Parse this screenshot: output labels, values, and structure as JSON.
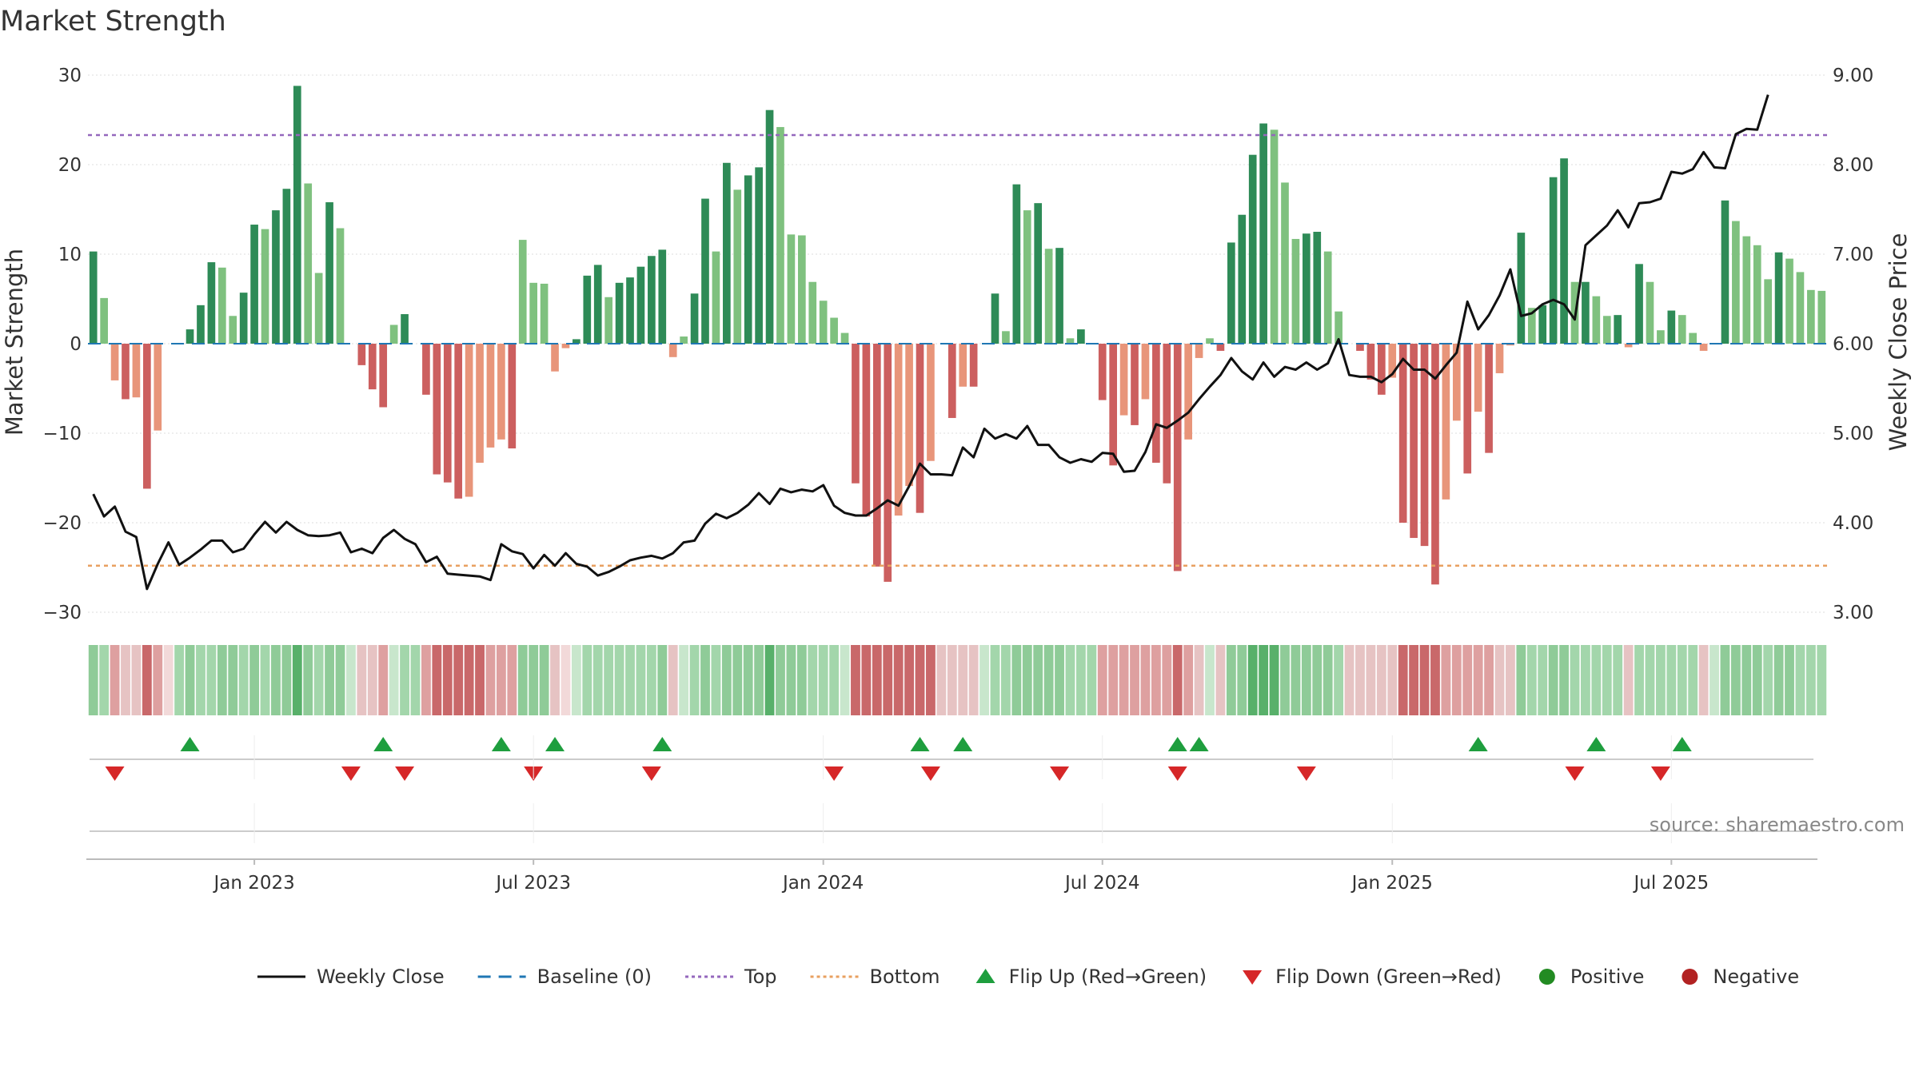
{
  "chart_data": {
    "type": "bar",
    "title": "Market Strength",
    "ylabel": "Market Strength",
    "y2label": "Weekly Close Price",
    "ylim": [
      -30,
      30
    ],
    "y2lim": [
      3.0,
      9.0
    ],
    "yticks": [
      "30",
      "20",
      "10",
      "0",
      "−10",
      "−20",
      "−30"
    ],
    "y2ticks": [
      "9.00",
      "8.00",
      "7.00",
      "6.00",
      "5.00",
      "4.00",
      "3.00"
    ],
    "xticks": [
      "Jan 2023",
      "Jul 2023",
      "Jan 2024",
      "Jul 2024",
      "Jan 2025",
      "Jul 2025"
    ],
    "xtick_index": [
      15,
      41,
      68,
      94,
      121,
      147
    ],
    "top_level": 23.3,
    "bottom_level": -24.8,
    "baseline": 0,
    "strength": [
      10.3,
      5.1,
      -4.1,
      -6.2,
      -6.0,
      -16.2,
      -9.7,
      0.0,
      0.0,
      1.6,
      4.3,
      9.1,
      8.5,
      3.1,
      5.7,
      13.3,
      12.8,
      14.9,
      17.3,
      28.8,
      17.9,
      7.9,
      15.8,
      12.9,
      0.0,
      -2.4,
      -5.1,
      -7.1,
      2.1,
      3.3,
      0.0,
      -5.7,
      -14.6,
      -15.5,
      -17.3,
      -17.1,
      -13.3,
      -11.6,
      -10.7,
      -11.7,
      11.6,
      6.8,
      6.7,
      -3.1,
      -0.5,
      0.5,
      7.6,
      8.8,
      5.2,
      6.8,
      7.4,
      8.6,
      9.8,
      10.5,
      -1.5,
      0.8,
      5.6,
      16.2,
      10.3,
      20.2,
      17.2,
      18.8,
      19.7,
      26.1,
      24.2,
      12.2,
      12.1,
      6.9,
      4.8,
      2.9,
      1.2,
      -15.6,
      -19.3,
      -24.9,
      -26.6,
      -19.2,
      -15.9,
      -18.9,
      -13.1,
      0.0,
      -8.3,
      -4.8,
      -4.8,
      0.0,
      5.6,
      1.4,
      17.8,
      14.9,
      15.7,
      10.6,
      10.7,
      0.6,
      1.6,
      0.0,
      -6.3,
      -13.6,
      -8.0,
      -9.1,
      -6.2,
      -13.3,
      -15.6,
      -25.4,
      -10.7,
      -1.6,
      0.6,
      -0.8,
      11.3,
      14.4,
      21.1,
      24.6,
      23.9,
      18.0,
      11.7,
      12.3,
      12.5,
      10.3,
      3.6,
      0.0,
      -0.8,
      -4.0,
      -5.7,
      -3.8,
      -20.0,
      -21.7,
      -22.6,
      -26.9,
      -17.4,
      -8.6,
      -14.5,
      -7.6,
      -12.2,
      -3.3,
      -0.2,
      12.4,
      4.0,
      4.3,
      18.6,
      20.7,
      6.9,
      6.9,
      5.3,
      3.1,
      3.2,
      -0.4,
      8.9,
      6.9,
      1.5,
      3.7,
      3.2,
      1.2,
      -0.8,
      0.0,
      16.0,
      13.7,
      12.0,
      11.0,
      7.2,
      10.2,
      9.5,
      8.0,
      6.0,
      5.9
    ],
    "weekly_close": [
      4.32,
      4.07,
      4.18,
      3.9,
      3.84,
      3.26,
      3.54,
      3.78,
      3.53,
      3.61,
      3.7,
      3.8,
      3.8,
      3.67,
      3.71,
      3.87,
      4.01,
      3.89,
      4.01,
      3.92,
      3.86,
      3.85,
      3.86,
      3.89,
      3.67,
      3.71,
      3.66,
      3.83,
      3.92,
      3.82,
      3.76,
      3.56,
      3.62,
      3.43,
      3.42,
      3.41,
      3.4,
      3.36,
      3.76,
      3.68,
      3.65,
      3.49,
      3.64,
      3.52,
      3.66,
      3.54,
      3.51,
      3.41,
      3.45,
      3.51,
      3.58,
      3.61,
      3.63,
      3.6,
      3.66,
      3.78,
      3.8,
      3.99,
      4.1,
      4.05,
      4.11,
      4.2,
      4.33,
      4.21,
      4.38,
      4.34,
      4.37,
      4.35,
      4.42,
      4.19,
      4.11,
      4.08,
      4.08,
      4.16,
      4.25,
      4.19,
      4.41,
      4.66,
      4.54,
      4.54,
      4.53,
      4.84,
      4.73,
      5.05,
      4.94,
      4.99,
      4.94,
      5.08,
      4.87,
      4.87,
      4.73,
      4.67,
      4.71,
      4.68,
      4.78,
      4.77,
      4.57,
      4.58,
      4.79,
      5.1,
      5.06,
      5.14,
      5.23,
      5.38,
      5.52,
      5.65,
      5.84,
      5.69,
      5.6,
      5.79,
      5.63,
      5.74,
      5.71,
      5.79,
      5.71,
      5.78,
      6.05,
      5.65,
      5.63,
      5.63,
      5.57,
      5.66,
      5.83,
      5.71,
      5.71,
      5.61,
      5.76,
      5.9,
      6.47,
      6.16,
      6.32,
      6.54,
      6.83,
      6.31,
      6.34,
      6.44,
      6.49,
      6.44,
      6.27,
      7.1,
      7.21,
      7.32,
      7.49,
      7.3,
      7.57,
      7.58,
      7.62,
      7.92,
      7.9,
      7.95,
      8.14,
      7.97,
      7.96,
      8.34,
      8.4,
      8.39,
      8.78
    ],
    "heat_row": [
      5,
      4,
      8,
      7,
      7,
      9,
      8,
      2,
      4,
      5,
      4,
      4,
      5,
      5,
      4,
      5,
      4,
      5,
      5,
      6,
      5,
      4,
      5,
      5,
      3,
      7,
      7,
      8,
      3,
      4,
      4,
      8,
      9,
      9,
      9,
      9,
      9,
      8,
      8,
      8,
      5,
      5,
      5,
      7,
      2,
      3,
      4,
      4,
      4,
      4,
      4,
      4,
      4,
      5,
      7,
      3,
      4,
      5,
      4,
      5,
      5,
      5,
      5,
      6,
      5,
      5,
      5,
      4,
      4,
      4,
      3,
      9,
      9,
      9,
      9,
      9,
      9,
      9,
      9,
      7,
      7,
      7,
      7,
      3,
      4,
      4,
      5,
      5,
      5,
      5,
      5,
      4,
      4,
      4,
      8,
      8,
      8,
      8,
      8,
      8,
      8,
      9,
      8,
      7,
      3,
      7,
      5,
      5,
      6,
      6,
      6,
      5,
      5,
      5,
      5,
      5,
      4,
      7,
      7,
      7,
      7,
      7,
      9,
      9,
      9,
      9,
      8,
      8,
      8,
      8,
      8,
      7,
      7,
      5,
      4,
      4,
      5,
      5,
      4,
      4,
      4,
      4,
      4,
      7,
      4,
      4,
      4,
      4,
      4,
      4,
      7,
      3,
      5,
      5,
      5,
      5,
      4,
      5,
      5,
      4,
      4,
      4
    ],
    "flip_up_index": [
      9,
      27,
      38,
      43,
      53,
      77,
      81,
      101,
      103,
      129,
      140,
      148
    ],
    "flip_down_index": [
      2,
      24,
      29,
      41,
      52,
      69,
      78,
      90,
      101,
      113,
      138,
      146
    ],
    "colors": {
      "pos_strong": "#2e8b57",
      "pos_weak": "#7fc17f",
      "neg_strong": "#cc5f5f",
      "neg_weak": "#e8957a",
      "line": "#111111",
      "top": "#9467bd",
      "bottom": "#e8a060",
      "baseline": "#1f77b4",
      "flip_up": "#1e9e3e",
      "flip_down": "#d62728",
      "positive_dot": "#228b22",
      "negative_dot": "#b22222"
    },
    "legend": [
      {
        "label": "Weekly Close",
        "kind": "line",
        "color": "#111111"
      },
      {
        "label": "Baseline (0)",
        "kind": "dash",
        "color": "#1f77b4"
      },
      {
        "label": "Top",
        "kind": "dot",
        "color": "#9467bd"
      },
      {
        "label": "Bottom",
        "kind": "dot",
        "color": "#e8a060"
      },
      {
        "label": "Flip Up (Red→Green)",
        "kind": "up",
        "color": "#1e9e3e"
      },
      {
        "label": "Flip Down (Green→Red)",
        "kind": "down",
        "color": "#d62728"
      },
      {
        "label": "Positive",
        "kind": "circle",
        "color": "#228b22"
      },
      {
        "label": "Negative",
        "kind": "circle",
        "color": "#b22222"
      }
    ],
    "source": "source: sharemaestro.com"
  }
}
